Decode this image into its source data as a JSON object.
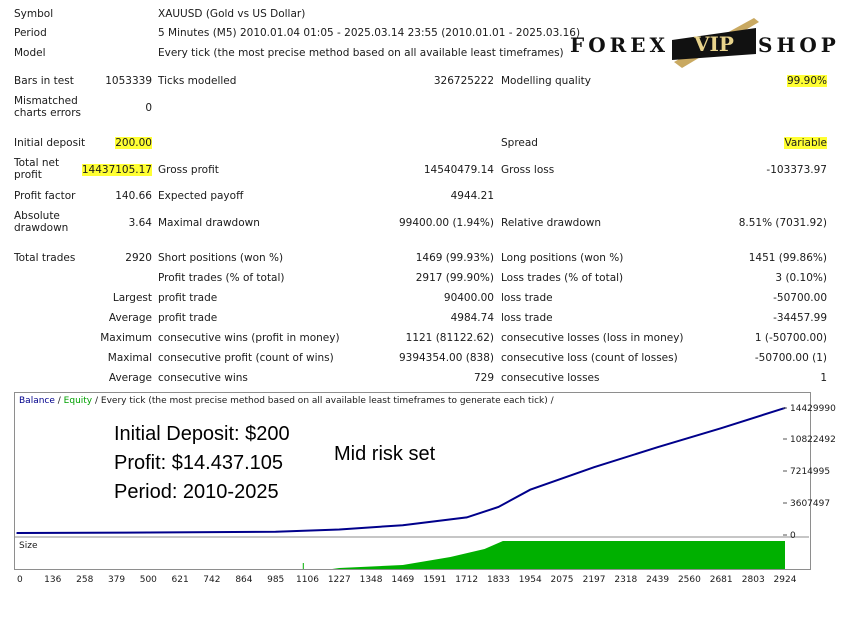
{
  "header": {
    "symbol_label": "Symbol",
    "symbol_value": "XAUUSD (Gold vs US Dollar)",
    "period_label": "Period",
    "period_value": "5 Minutes (M5) 2010.01.04 01:05 - 2025.03.14 23:55 (2010.01.01 - 2025.03.16)",
    "model_label": "Model",
    "model_value": "Every tick (the most precise method based on all available least timeframes)"
  },
  "logo": {
    "left": "FOREX",
    "badge": "VIP",
    "right": "SHOP"
  },
  "stats": {
    "bars_label": "Bars in test",
    "bars_value": "1053339",
    "ticks_label": "Ticks modelled",
    "ticks_value": "326725222",
    "quality_label": "Modelling quality",
    "quality_value": "99.90%",
    "mismatch_label": "Mismatched charts errors",
    "mismatch_value": "0",
    "deposit_label": "Initial deposit",
    "deposit_value": "200.00",
    "spread_label": "Spread",
    "spread_value": "Variable",
    "net_label": "Total net profit",
    "net_value": "14437105.17",
    "gross_profit_label": "Gross profit",
    "gross_profit_value": "14540479.14",
    "gross_loss_label": "Gross loss",
    "gross_loss_value": "-103373.97",
    "pf_label": "Profit factor",
    "pf_value": "140.66",
    "payoff_label": "Expected payoff",
    "payoff_value": "4944.21",
    "absdd_label": "Absolute drawdown",
    "absdd_value": "3.64",
    "maxdd_label": "Maximal drawdown",
    "maxdd_value": "99400.00 (1.94%)",
    "reldd_label": "Relative drawdown",
    "reldd_value": "8.51% (7031.92)",
    "trades_label": "Total trades",
    "trades_value": "2920",
    "short_label": "Short positions (won %)",
    "short_value": "1469 (99.93%)",
    "long_label": "Long positions (won %)",
    "long_value": "1451 (99.86%)",
    "ptrades_label": "Profit trades (% of total)",
    "ptrades_value": "2917 (99.90%)",
    "ltrades_label": "Loss trades (% of total)",
    "ltrades_value": "3 (0.10%)",
    "largest_label": "Largest",
    "lg_profit_label": "profit trade",
    "lg_profit_value": "90400.00",
    "lg_loss_label": "loss trade",
    "lg_loss_value": "-50700.00",
    "average_label": "Average",
    "av_profit_label": "profit trade",
    "av_profit_value": "4984.74",
    "av_loss_label": "loss trade",
    "av_loss_value": "-34457.99",
    "maximum_label": "Maximum",
    "mx_wins_label": "consecutive wins (profit in money)",
    "mx_wins_value": "1121 (81122.62)",
    "mx_losses_label": "consecutive losses (loss in money)",
    "mx_losses_value": "1 (-50700.00)",
    "maximal_label": "Maximal",
    "ml_profit_label": "consecutive profit (count of wins)",
    "ml_profit_value": "9394354.00 (838)",
    "ml_loss_label": "consecutive loss (count of losses)",
    "ml_loss_value": "-50700.00 (1)",
    "average2_label": "Average",
    "ac_wins_label": "consecutive wins",
    "ac_wins_value": "729",
    "ac_losses_label": "consecutive losses",
    "ac_losses_value": "1"
  },
  "chart": {
    "title_balance": "Balance",
    "title_sep1": " / ",
    "title_equity": "Equity",
    "title_rest": " / Every tick (the most precise method based on all available least timeframes to generate each tick) /",
    "balance_color": "#00008b",
    "equity_color": "#00a000",
    "size_color": "#00b000",
    "size_label": "Size",
    "overlay_deposit": "Initial Deposit: $200",
    "overlay_profit": "Profit: $14.437.105",
    "overlay_period": "Period: 2010-2025",
    "overlay_risk": "Mid risk set",
    "y_ticks": [
      "14429990",
      "10822492",
      "7214995",
      "3607497",
      "0"
    ],
    "x_ticks": [
      "0",
      "136",
      "258",
      "379",
      "500",
      "621",
      "742",
      "864",
      "985",
      "1106",
      "1227",
      "1348",
      "1469",
      "1591",
      "1712",
      "1833",
      "1954",
      "2075",
      "2197",
      "2318",
      "2439",
      "2560",
      "2681",
      "2803",
      "2924"
    ]
  },
  "chart_data": {
    "type": "line",
    "x": [
      0,
      500,
      985,
      1227,
      1469,
      1712,
      1833,
      1954,
      2197,
      2439,
      2681,
      2924
    ],
    "series": [
      {
        "name": "Balance",
        "values": [
          200,
          60000,
          150000,
          400000,
          900000,
          1800000,
          3000000,
          5000000,
          7600000,
          9900000,
          12100000,
          14437105
        ]
      }
    ],
    "ylim": [
      0,
      14429990
    ],
    "xlim": [
      0,
      2924
    ]
  }
}
